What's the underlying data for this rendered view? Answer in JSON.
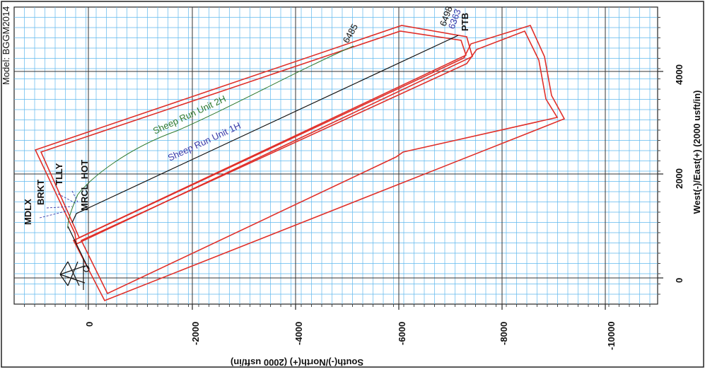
{
  "header": {
    "model_label": "Model: BGGM2014"
  },
  "axes": {
    "x_label": "South(-)/North(+) (2000 usft/in)",
    "y_label": "West(-)/East(+) (2000 usft/in)",
    "x_ticks": [
      "0",
      "-2000",
      "-4000",
      "-6000",
      "-8000",
      "-10000"
    ],
    "y_ticks": [
      "4000",
      "2000",
      "0"
    ]
  },
  "wells": [
    {
      "name": "Sheep Run Unit 2H",
      "color": "#2f7a2f",
      "end_depth": "6485"
    },
    {
      "name": "Sheep Run Unit 1H",
      "color": "#3a3aa8",
      "end_depth": "6498"
    }
  ],
  "labels": {
    "ptb": "PTB",
    "depth_extra": "6363",
    "mdlx": "MDLX",
    "brkt": "BRKT",
    "tlly": "TLLY",
    "mrcl_hot": "MRCL_HOT"
  },
  "colors": {
    "grid": "#5fb8ee",
    "boundary": "#e0302a",
    "plan": "#111111"
  }
}
